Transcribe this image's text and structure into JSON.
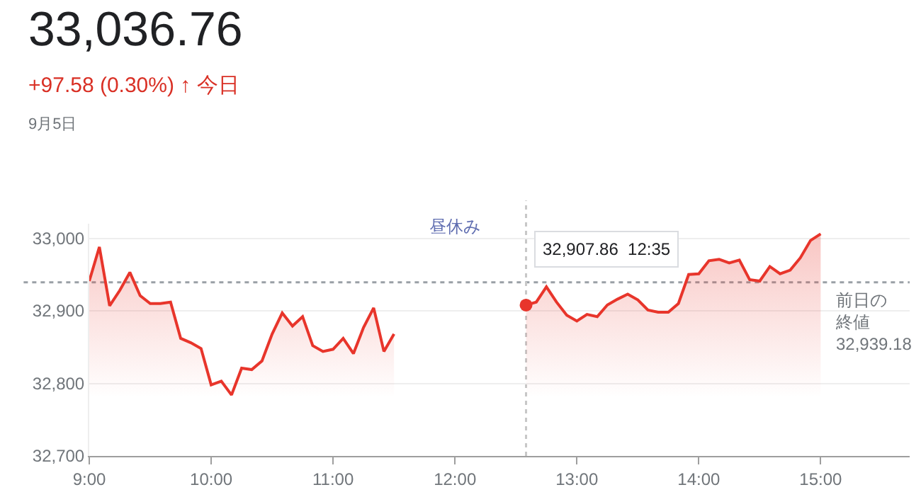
{
  "chart_data": {
    "type": "area",
    "title": "33,036.76",
    "subtitle": "+97.58 (0.30%) ↑ 今日",
    "annotations": [
      "9月5日",
      "昼休み",
      {
        "text": "32,907.86  12:35",
        "x": 12.583,
        "y": 32907.86
      }
    ],
    "series": [
      {
        "color": "#e8352b",
        "x": [
          9.0,
          9.083,
          9.167,
          9.25,
          9.333,
          9.417,
          9.5,
          9.583,
          9.667,
          9.75,
          9.833,
          9.917,
          10.0,
          10.083,
          10.167,
          10.25,
          10.333,
          10.417,
          10.5,
          10.583,
          10.667,
          10.75,
          10.833,
          10.917,
          11.0,
          11.083,
          11.167,
          11.25,
          11.333,
          11.417,
          11.5
        ],
        "values": [
          32941,
          32988,
          32907,
          32928,
          32953,
          32921,
          32910,
          32910,
          32912,
          32862,
          32856,
          32848,
          32798,
          32803,
          32784,
          32821,
          32819,
          32831,
          32868,
          32897,
          32879,
          32892,
          32852,
          32844,
          32847,
          32862,
          32841,
          32877,
          32904,
          32844,
          32868
        ]
      },
      {
        "color": "#e8352b",
        "x": [
          12.583,
          12.667,
          12.75,
          12.833,
          12.917,
          13.0,
          13.083,
          13.167,
          13.25,
          13.333,
          13.417,
          13.5,
          13.583,
          13.667,
          13.75,
          13.833,
          13.917,
          14.0,
          14.083,
          14.167,
          14.25,
          14.333,
          14.417,
          14.5,
          14.583,
          14.667,
          14.75,
          14.833,
          14.917,
          15.0
        ],
        "values": [
          32907.86,
          32912,
          32933,
          32912,
          32894,
          32886,
          32895,
          32892,
          32908,
          32916,
          32923,
          32915,
          32901,
          32898,
          32898,
          32910,
          32950,
          32951,
          32969,
          32971,
          32966,
          32970,
          32943,
          32941,
          32961,
          32951,
          32956,
          32973,
          32997,
          33006
        ]
      },
      {
        "type": "scatter",
        "marker": "circle",
        "color": "#e8352b",
        "x": [
          12.583
        ],
        "values": [
          32907.86
        ]
      }
    ],
    "ref_lines": [
      {
        "axis": "y",
        "value": 32939.18,
        "label": "前日の終値\n32,939.18",
        "color": "#9aa0a6",
        "line_style": "dotted"
      },
      {
        "axis": "x",
        "value": 12.583,
        "color": "#c8c8c8",
        "line_style": "dotted"
      }
    ],
    "xlim": [
      9,
      15.73
    ],
    "xticks": [
      {
        "value": 9,
        "label": "9:00"
      },
      {
        "value": 10,
        "label": "10:00"
      },
      {
        "value": 11,
        "label": "11:00"
      },
      {
        "value": 12,
        "label": "12:00"
      },
      {
        "value": 13,
        "label": "13:00"
      },
      {
        "value": 14,
        "label": "14:00"
      },
      {
        "value": 15,
        "label": "15:00"
      }
    ],
    "ylim": [
      32700,
      33020
    ],
    "yticks": [
      {
        "value": 32700,
        "label": "32,700"
      },
      {
        "value": 32800,
        "label": "32,800"
      },
      {
        "value": 32900,
        "label": "32,900"
      },
      {
        "value": 33000,
        "label": "33,000"
      }
    ],
    "grid": "y",
    "marker": "none",
    "line_style": "solid"
  }
}
